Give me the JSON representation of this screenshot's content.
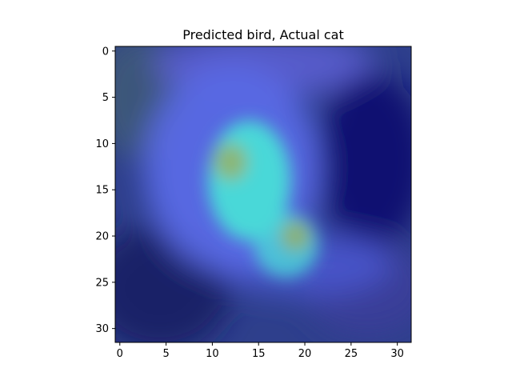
{
  "chart_data": {
    "type": "heatmap",
    "title": "Predicted bird, Actual cat",
    "xlabel": "",
    "ylabel": "",
    "image_size": [
      32,
      32
    ],
    "xlim": [
      -0.5,
      31.5
    ],
    "ylim": [
      31.5,
      -0.5
    ],
    "xticks": [
      0,
      5,
      10,
      15,
      20,
      25,
      30
    ],
    "yticks": [
      0,
      5,
      10,
      15,
      20,
      25,
      30
    ],
    "colormap": "jet overlay on photo",
    "grid": false,
    "legend": "none",
    "attention_blobs": [
      {
        "center": [
          14,
          14
        ],
        "spread": [
          4.5,
          6.5
        ],
        "intensity": 0.55
      },
      {
        "center": [
          18,
          21
        ],
        "spread": [
          3.5,
          3.5
        ],
        "intensity": 0.35
      },
      {
        "center": [
          12,
          12
        ],
        "spread": [
          1.8,
          2.0
        ],
        "intensity": 0.25
      },
      {
        "center": [
          19,
          20
        ],
        "spread": [
          1.6,
          1.6
        ],
        "intensity": 0.25
      }
    ],
    "colors": {
      "background": "#2e3f8c",
      "dark_region": "#0a0a6a",
      "mid": "#5a6ae6",
      "cyan": "#4ad8d8",
      "yellow": "#a8a84a"
    }
  }
}
